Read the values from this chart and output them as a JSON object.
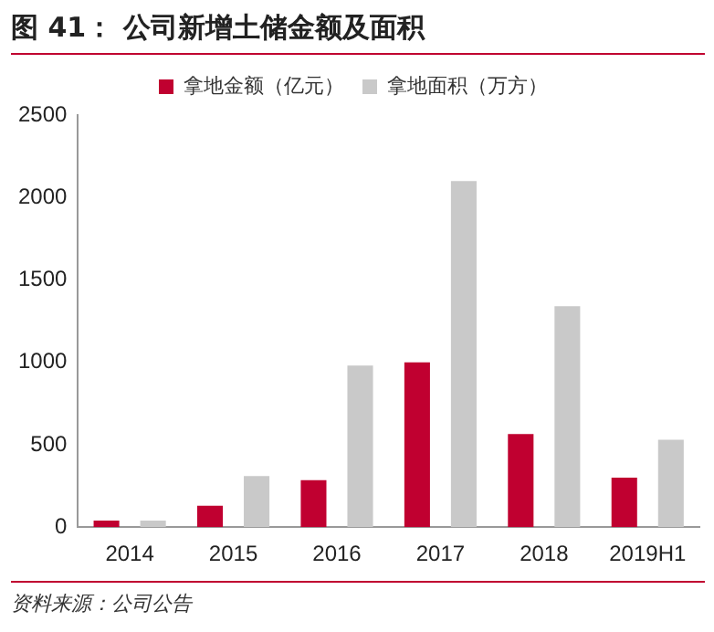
{
  "chart_data": {
    "type": "bar",
    "title": "图 41：  公司新增土储金额及面积",
    "categories": [
      "2014",
      "2015",
      "2016",
      "2017",
      "2018",
      "2019H1"
    ],
    "series": [
      {
        "name": "拿地金额（亿元）",
        "color": "#c00030",
        "values": [
          40,
          130,
          285,
          1000,
          565,
          300
        ]
      },
      {
        "name": "拿地面积（万方）",
        "color": "#c9c9c9",
        "values": [
          40,
          310,
          980,
          2100,
          1340,
          530
        ]
      }
    ],
    "ylim": [
      0,
      2500
    ],
    "yticks": [
      0,
      500,
      1000,
      1500,
      2000,
      2500
    ],
    "grid": false,
    "legend": "top",
    "annotations": [
      "资料来源：公司公告"
    ]
  }
}
